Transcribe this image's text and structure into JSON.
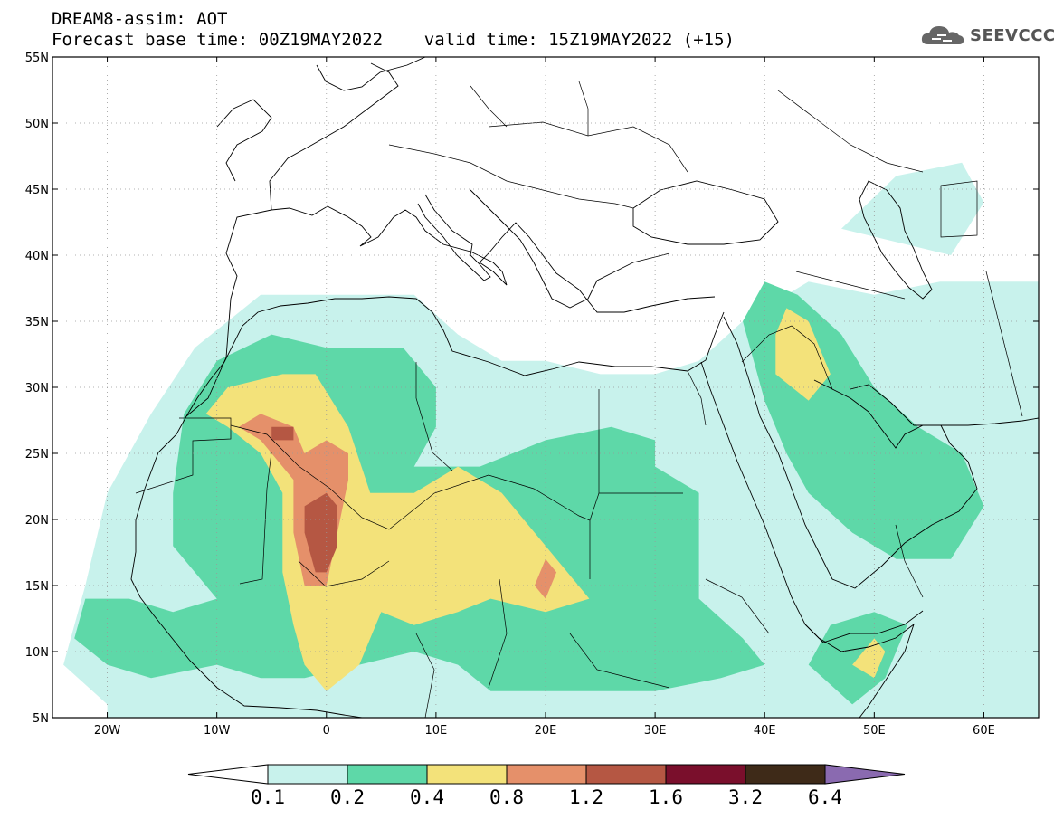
{
  "title": {
    "line1": "DREAM8-assim: AOT",
    "line2": "Forecast base time: 00Z19MAY2022    valid time: 15Z19MAY2022 (+15)"
  },
  "logo": {
    "text": "SEEVCCC",
    "icon": "cloud-icon"
  },
  "chart_data": {
    "type": "heatmap",
    "variable": "AOT",
    "lon_range": [
      -25,
      65
    ],
    "lat_range": [
      5,
      55
    ],
    "x_ticks": [
      {
        "value": -20,
        "label": "20W"
      },
      {
        "value": -10,
        "label": "10W"
      },
      {
        "value": 0,
        "label": "0"
      },
      {
        "value": 10,
        "label": "10E"
      },
      {
        "value": 20,
        "label": "20E"
      },
      {
        "value": 30,
        "label": "30E"
      },
      {
        "value": 40,
        "label": "40E"
      },
      {
        "value": 50,
        "label": "50E"
      },
      {
        "value": 60,
        "label": "60E"
      }
    ],
    "y_ticks": [
      {
        "value": 5,
        "label": "5N"
      },
      {
        "value": 10,
        "label": "10N"
      },
      {
        "value": 15,
        "label": "15N"
      },
      {
        "value": 20,
        "label": "20N"
      },
      {
        "value": 25,
        "label": "25N"
      },
      {
        "value": 30,
        "label": "30N"
      },
      {
        "value": 35,
        "label": "35N"
      },
      {
        "value": 40,
        "label": "40N"
      },
      {
        "value": 45,
        "label": "45N"
      },
      {
        "value": 50,
        "label": "50N"
      },
      {
        "value": 55,
        "label": "55N"
      }
    ],
    "grid": true,
    "colorbar": {
      "levels": [
        "0.1",
        "0.2",
        "0.4",
        "0.8",
        "1.2",
        "1.6",
        "3.2",
        "6.4"
      ],
      "colors": [
        "#c8f2ec",
        "#5ed8a8",
        "#f3e27a",
        "#e5906a",
        "#b55743",
        "#7a0f2c",
        "#3e2a18",
        "#8a6ab0"
      ],
      "extend": "both"
    },
    "regions": [
      {
        "level": 1,
        "pts": [
          [
            -20,
            6
          ],
          [
            -24,
            9
          ],
          [
            -22,
            15
          ],
          [
            -20,
            22
          ],
          [
            -16,
            28
          ],
          [
            -12,
            33
          ],
          [
            -6,
            37
          ],
          [
            0,
            37
          ],
          [
            8,
            37
          ],
          [
            12,
            34
          ],
          [
            16,
            32
          ],
          [
            20,
            32
          ],
          [
            25,
            31
          ],
          [
            30,
            31
          ],
          [
            34,
            32
          ],
          [
            38,
            35
          ],
          [
            44,
            38
          ],
          [
            50,
            37
          ],
          [
            56,
            38
          ],
          [
            62,
            38
          ],
          [
            65,
            38
          ],
          [
            65,
            5
          ],
          [
            -20,
            5
          ]
        ]
      },
      {
        "level": 1,
        "pts": [
          [
            47,
            42
          ],
          [
            52,
            46
          ],
          [
            58,
            47
          ],
          [
            60,
            44
          ],
          [
            57,
            40
          ],
          [
            52,
            41
          ]
        ]
      },
      {
        "level": 2,
        "pts": [
          [
            -20,
            9
          ],
          [
            -23,
            11
          ],
          [
            -22,
            14
          ],
          [
            -18,
            14
          ],
          [
            -14,
            13
          ],
          [
            -10,
            14
          ],
          [
            -14,
            18
          ],
          [
            -14,
            22
          ],
          [
            -13,
            28
          ],
          [
            -10,
            32
          ],
          [
            -5,
            34
          ],
          [
            0,
            33
          ],
          [
            7,
            33
          ],
          [
            10,
            30
          ],
          [
            10,
            27
          ],
          [
            8,
            24
          ],
          [
            14,
            24
          ],
          [
            20,
            26
          ],
          [
            26,
            27
          ],
          [
            30,
            26
          ],
          [
            30,
            24
          ],
          [
            34,
            22
          ],
          [
            34,
            14
          ],
          [
            38,
            11
          ],
          [
            40,
            9
          ],
          [
            36,
            8
          ],
          [
            30,
            7
          ],
          [
            25,
            7
          ],
          [
            15,
            7
          ],
          [
            12,
            9
          ],
          [
            8,
            10
          ],
          [
            3,
            9
          ],
          [
            -2,
            8
          ],
          [
            -6,
            8
          ],
          [
            -10,
            9
          ],
          [
            -16,
            8
          ]
        ]
      },
      {
        "level": 2,
        "pts": [
          [
            38,
            35
          ],
          [
            40,
            38
          ],
          [
            43,
            37
          ],
          [
            47,
            34
          ],
          [
            50,
            30
          ],
          [
            54,
            27
          ],
          [
            58,
            25
          ],
          [
            60,
            21
          ],
          [
            57,
            17
          ],
          [
            52,
            17
          ],
          [
            48,
            19
          ],
          [
            44,
            22
          ],
          [
            42,
            25
          ],
          [
            40,
            29
          ]
        ]
      },
      {
        "level": 2,
        "pts": [
          [
            44,
            9
          ],
          [
            46,
            12
          ],
          [
            50,
            13
          ],
          [
            53,
            12
          ],
          [
            51,
            8
          ],
          [
            48,
            6
          ]
        ]
      },
      {
        "level": 3,
        "pts": [
          [
            -9,
            27
          ],
          [
            -11,
            28
          ],
          [
            -9,
            30
          ],
          [
            -4,
            31
          ],
          [
            -1,
            31
          ],
          [
            2,
            27
          ],
          [
            4,
            22
          ],
          [
            8,
            22
          ],
          [
            12,
            24
          ],
          [
            16,
            22
          ],
          [
            18,
            20
          ],
          [
            22,
            16
          ],
          [
            24,
            14
          ],
          [
            20,
            13
          ],
          [
            15,
            14
          ],
          [
            12,
            13
          ],
          [
            8,
            12
          ],
          [
            5,
            13
          ],
          [
            3,
            9
          ],
          [
            0,
            7
          ],
          [
            -2,
            9
          ],
          [
            -3,
            12
          ],
          [
            -4,
            16
          ],
          [
            -4,
            22
          ],
          [
            -6,
            25
          ]
        ]
      },
      {
        "level": 3,
        "pts": [
          [
            41,
            34
          ],
          [
            42,
            36
          ],
          [
            44,
            35
          ],
          [
            46,
            31
          ],
          [
            44,
            29
          ],
          [
            41,
            31
          ]
        ]
      },
      {
        "level": 3,
        "pts": [
          [
            48,
            9
          ],
          [
            50,
            11
          ],
          [
            51,
            10
          ],
          [
            50,
            8
          ]
        ]
      },
      {
        "level": 4,
        "pts": [
          [
            -8,
            27
          ],
          [
            -6,
            28
          ],
          [
            -3,
            27
          ],
          [
            -2,
            25
          ],
          [
            0,
            26
          ],
          [
            2,
            25
          ],
          [
            2,
            23
          ],
          [
            1,
            19
          ],
          [
            0,
            15
          ],
          [
            -2,
            15
          ],
          [
            -3,
            19
          ],
          [
            -3,
            23
          ],
          [
            -6,
            26
          ]
        ]
      },
      {
        "level": 4,
        "pts": [
          [
            19,
            15
          ],
          [
            20,
            17
          ],
          [
            21,
            16
          ],
          [
            20,
            14
          ]
        ]
      },
      {
        "level": 5,
        "pts": [
          [
            -2,
            21
          ],
          [
            -2,
            19
          ],
          [
            -1,
            16
          ],
          [
            0,
            16
          ],
          [
            1,
            18
          ],
          [
            1,
            21
          ],
          [
            0,
            22
          ]
        ]
      },
      {
        "level": 5,
        "pts": [
          [
            -5,
            27
          ],
          [
            -3,
            27
          ],
          [
            -3,
            26
          ],
          [
            -5,
            26
          ]
        ]
      }
    ]
  }
}
